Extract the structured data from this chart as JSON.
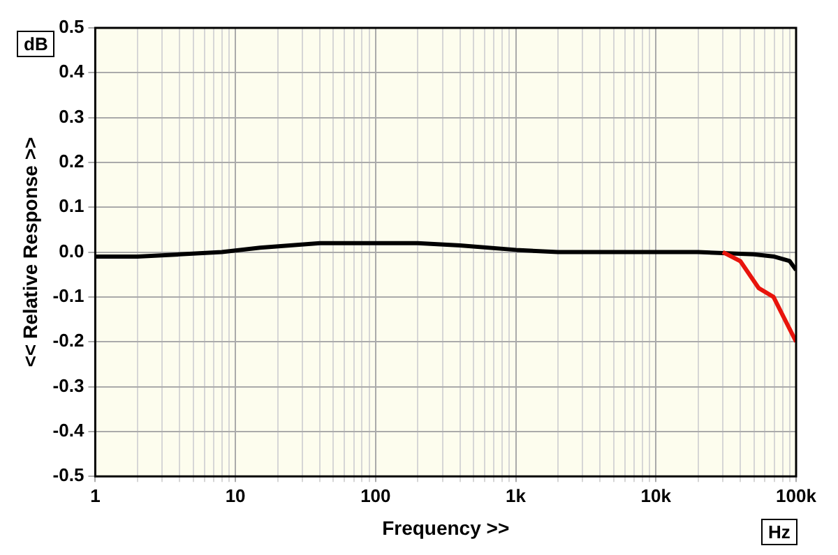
{
  "chart_data": {
    "type": "line",
    "xlabel": "Frequency >>",
    "ylabel": "<< Relative Response >>",
    "annotations": [
      "dB",
      "Hz"
    ],
    "log": "x",
    "grid": true,
    "legend": false,
    "marker": "none",
    "line_style": "solid",
    "xlim": [
      1,
      100000
    ],
    "ylim": [
      -0.5,
      0.5
    ],
    "xticks": [
      {
        "value": 1,
        "label": "1"
      },
      {
        "value": 2,
        "label": null
      },
      {
        "value": 3,
        "label": null
      },
      {
        "value": 4,
        "label": null
      },
      {
        "value": 5,
        "label": null
      },
      {
        "value": 6,
        "label": null
      },
      {
        "value": 7,
        "label": null
      },
      {
        "value": 8,
        "label": null
      },
      {
        "value": 9,
        "label": null
      },
      {
        "value": 10,
        "label": "10"
      },
      {
        "value": 20,
        "label": null
      },
      {
        "value": 30,
        "label": null
      },
      {
        "value": 40,
        "label": null
      },
      {
        "value": 50,
        "label": null
      },
      {
        "value": 60,
        "label": null
      },
      {
        "value": 70,
        "label": null
      },
      {
        "value": 80,
        "label": null
      },
      {
        "value": 90,
        "label": null
      },
      {
        "value": 100,
        "label": "100"
      },
      {
        "value": 200,
        "label": null
      },
      {
        "value": 300,
        "label": null
      },
      {
        "value": 400,
        "label": null
      },
      {
        "value": 500,
        "label": null
      },
      {
        "value": 600,
        "label": null
      },
      {
        "value": 700,
        "label": null
      },
      {
        "value": 800,
        "label": null
      },
      {
        "value": 900,
        "label": null
      },
      {
        "value": 1000,
        "label": "1k"
      },
      {
        "value": 2000,
        "label": null
      },
      {
        "value": 3000,
        "label": null
      },
      {
        "value": 4000,
        "label": null
      },
      {
        "value": 5000,
        "label": null
      },
      {
        "value": 6000,
        "label": null
      },
      {
        "value": 7000,
        "label": null
      },
      {
        "value": 8000,
        "label": null
      },
      {
        "value": 9000,
        "label": null
      },
      {
        "value": 10000,
        "label": "10k"
      },
      {
        "value": 20000,
        "label": null
      },
      {
        "value": 30000,
        "label": null
      },
      {
        "value": 40000,
        "label": null
      },
      {
        "value": 50000,
        "label": null
      },
      {
        "value": 60000,
        "label": null
      },
      {
        "value": 70000,
        "label": null
      },
      {
        "value": 80000,
        "label": null
      },
      {
        "value": 90000,
        "label": null
      },
      {
        "value": 100000,
        "label": "100k"
      }
    ],
    "yticks": [
      {
        "value": -0.5,
        "label": "-0.5"
      },
      {
        "value": -0.4,
        "label": "-0.4"
      },
      {
        "value": -0.3,
        "label": "-0.3"
      },
      {
        "value": -0.2,
        "label": "-0.2"
      },
      {
        "value": -0.1,
        "label": "-0.1"
      },
      {
        "value": 0,
        "label": "0.0"
      },
      {
        "value": 0.1,
        "label": "0.1"
      },
      {
        "value": 0.2,
        "label": "0.2"
      },
      {
        "value": 0.3,
        "label": "0.3"
      },
      {
        "value": 0.4,
        "label": "0.4"
      },
      {
        "value": 0.5,
        "label": "0.5"
      }
    ],
    "series": [
      {
        "color": "#e8140c",
        "x": [
          30000,
          40000,
          54000,
          69000,
          80000,
          100000
        ],
        "values": [
          0,
          -0.02,
          -0.08,
          -0.1,
          -0.14,
          -0.2
        ]
      },
      {
        "color": "#000000",
        "x": [
          1,
          2,
          4,
          8,
          15,
          40,
          200,
          400,
          1000,
          2000,
          10000,
          20000,
          50000,
          70000,
          90000,
          100000
        ],
        "values": [
          -0.01,
          -0.01,
          -0.005,
          0,
          0.01,
          0.02,
          0.02,
          0.015,
          0.005,
          0,
          0,
          0,
          -0.005,
          -0.01,
          -0.02,
          -0.04
        ]
      }
    ]
  }
}
